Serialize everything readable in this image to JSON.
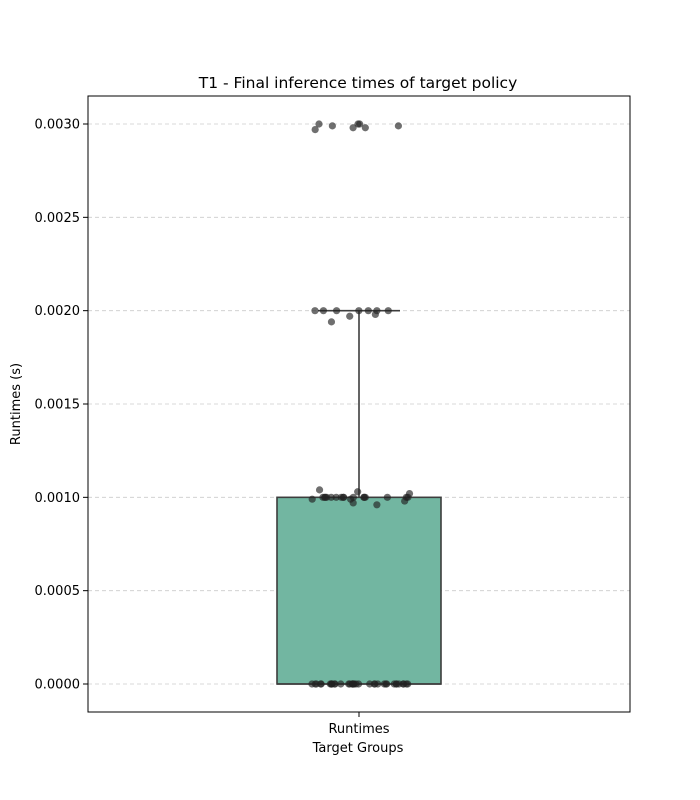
{
  "chart_data": {
    "type": "box",
    "title": "T1 - Final inference times of target policy",
    "xlabel": "Target Groups",
    "ylabel": "Runtimes (s)",
    "categories": [
      "Runtimes"
    ],
    "ylim": [
      -0.00015,
      0.00315
    ],
    "yticks": [
      0.0,
      0.0005,
      0.001,
      0.0015,
      0.002,
      0.0025,
      0.003
    ],
    "ytick_labels": [
      "0.0000",
      "0.0005",
      "0.0010",
      "0.0015",
      "0.0020",
      "0.0025",
      "0.0030"
    ],
    "grid": "y-dashed",
    "box": {
      "q1": 0.0,
      "median": 0.0,
      "q3": 0.001,
      "whisker_low": 0.0,
      "whisker_high": 0.002,
      "color": "#72b6a1",
      "edge_color": "#3d3d3d"
    },
    "points": {
      "color": "#222222",
      "values": [
        0.003,
        0.00298,
        0.003,
        0.00299,
        0.00298,
        0.003,
        0.00297,
        0.00299,
        0.002,
        0.00197,
        0.002,
        0.002,
        0.00198,
        0.002,
        0.002,
        0.00194,
        0.002,
        0.002,
        0.001,
        0.00103,
        0.001,
        0.00099,
        0.00098,
        0.001,
        0.00104,
        0.00097,
        0.001,
        0.001,
        0.00099,
        0.001,
        0.00096,
        0.001,
        0.001,
        0.00102,
        0.001,
        0.001,
        0.001,
        0.001,
        0.001,
        0.001,
        0.001,
        0.001,
        0.0,
        0.0,
        0.0,
        0.0,
        0.0,
        0.0,
        0.0,
        0.0,
        0.0,
        0.0,
        0.0,
        0.0,
        0.0,
        0.0,
        0.0,
        0.0,
        0.0,
        0.0,
        0.0,
        0.0,
        0.0,
        0.0,
        0.0,
        0.0,
        0.0,
        0.0,
        0.0,
        0.0,
        0.0,
        0.0,
        0.0,
        0.0,
        0.0,
        0.0,
        0.0,
        0.0
      ]
    }
  }
}
